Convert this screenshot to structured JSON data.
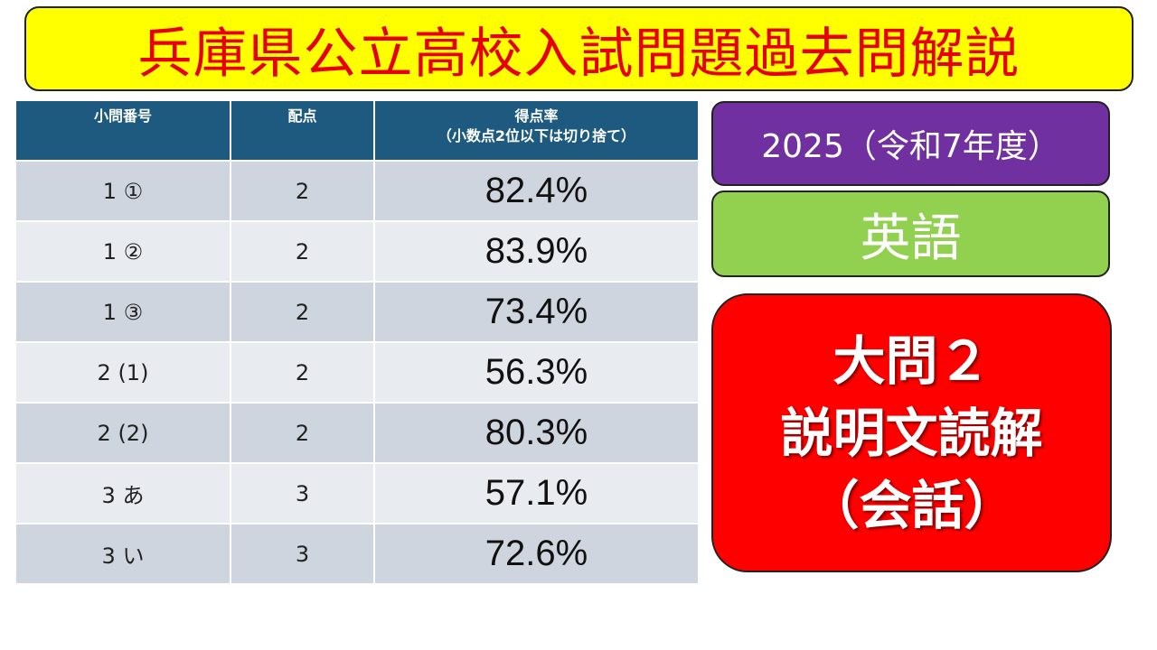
{
  "title": "兵庫県公立高校入試問題過去問解説",
  "table": {
    "headers": {
      "question": "小問番号",
      "points": "配点",
      "rate": "得点率",
      "rate_note": "（小数点2位以下は切り捨て）"
    },
    "rows": [
      {
        "question": "1 ①",
        "points": "2",
        "rate": "82.4%"
      },
      {
        "question": "1 ②",
        "points": "2",
        "rate": "83.9%"
      },
      {
        "question": "1 ③",
        "points": "2",
        "rate": "73.4%"
      },
      {
        "question": "2 (1)",
        "points": "2",
        "rate": "56.3%"
      },
      {
        "question": "2 (2)",
        "points": "2",
        "rate": "80.3%"
      },
      {
        "question": "3 あ",
        "points": "3",
        "rate": "57.1%"
      },
      {
        "question": "3 い",
        "points": "3",
        "rate": "72.6%"
      }
    ]
  },
  "year_label": "2025（令和7年度）",
  "subject_label": "英語",
  "question_box": {
    "line1": "大問２",
    "line2": "説明文読解",
    "line3": "（会話）"
  },
  "colors": {
    "banner_bg": "#ffff00",
    "banner_text": "#e60000",
    "table_header": "#1e5a80",
    "year_bg": "#7030a0",
    "subject_bg": "#92d050",
    "question_bg": "#ff0000"
  }
}
